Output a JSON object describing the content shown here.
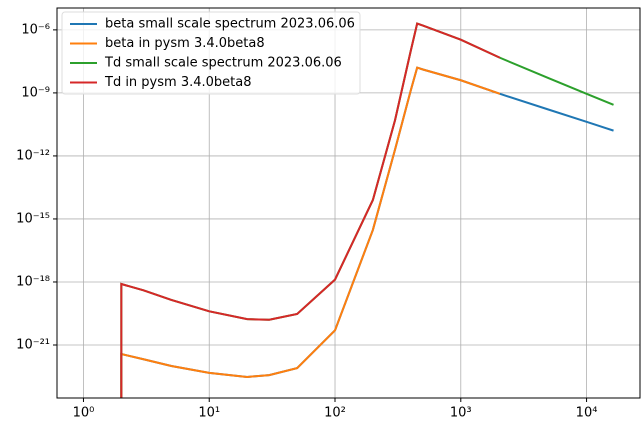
{
  "chart_data": {
    "type": "line",
    "log_x": true,
    "log_y": true,
    "grid": true,
    "legend": "upper left",
    "xlim": [
      0.616,
      26600
    ],
    "ylim": [
      3e-24,
      1.1e-05
    ],
    "xticks": [
      {
        "value": 1,
        "label": "10⁰"
      },
      {
        "value": 10,
        "label": "10¹"
      },
      {
        "value": 100,
        "label": "10²"
      },
      {
        "value": 1000,
        "label": "10³"
      },
      {
        "value": 10000,
        "label": "10⁴"
      }
    ],
    "yticks": [
      {
        "value": 1e-21,
        "label": "10⁻²¹"
      },
      {
        "value": 1e-18,
        "label": "10⁻¹⁸"
      },
      {
        "value": 1e-15,
        "label": "10⁻¹⁵"
      },
      {
        "value": 1e-12,
        "label": "10⁻¹²"
      },
      {
        "value": 1e-09,
        "label": "10⁻⁹"
      },
      {
        "value": 1e-06,
        "label": "10⁻⁶"
      }
    ],
    "series": [
      {
        "name": "beta small scale spectrum 2023.06.06",
        "color": "#1f77b4",
        "x": [
          2,
          2,
          3,
          5,
          10,
          20,
          30,
          50,
          100,
          200,
          300,
          400,
          450,
          500,
          1000,
          2048,
          5000,
          10000,
          16384
        ],
        "values": [
          1e-25,
          3.7e-22,
          2.1e-22,
          1e-22,
          4.7e-23,
          3e-23,
          3.7e-23,
          8e-23,
          5e-21,
          3e-16,
          2e-12,
          1.3e-09,
          1.6e-08,
          1.3e-08,
          4e-09,
          9e-10,
          1.6e-10,
          4.2e-11,
          1.6e-11
        ]
      },
      {
        "name": "beta in pysm 3.4.0beta8",
        "color": "#ff7f0e",
        "x": [
          2,
          2,
          3,
          5,
          10,
          20,
          30,
          50,
          100,
          200,
          300,
          400,
          450,
          500,
          1000,
          2048
        ],
        "values": [
          1e-25,
          3.7e-22,
          2.1e-22,
          1e-22,
          4.7e-23,
          3e-23,
          3.7e-23,
          8e-23,
          5e-21,
          3e-16,
          2e-12,
          1.3e-09,
          1.6e-08,
          1.3e-08,
          4e-09,
          9e-10
        ]
      },
      {
        "name": "Td small scale spectrum 2023.06.06",
        "color": "#2ca02c",
        "x": [
          2,
          2,
          3,
          5,
          10,
          20,
          30,
          50,
          100,
          200,
          300,
          400,
          450,
          500,
          1000,
          2048,
          5000,
          10000,
          16384
        ],
        "values": [
          1e-25,
          8e-19,
          4e-19,
          1.4e-19,
          4e-20,
          1.7e-20,
          1.6e-20,
          3e-20,
          1.3e-18,
          8e-15,
          5e-11,
          1e-07,
          2e-06,
          1.6e-06,
          3.4e-07,
          4.7e-08,
          5e-09,
          9e-10,
          2.7e-10
        ]
      },
      {
        "name": "Td in pysm 3.4.0beta8",
        "color": "#d62728",
        "x": [
          2,
          2,
          3,
          5,
          10,
          20,
          30,
          50,
          100,
          200,
          300,
          400,
          450,
          500,
          1000,
          2048
        ],
        "values": [
          1e-25,
          8e-19,
          4e-19,
          1.4e-19,
          4e-20,
          1.7e-20,
          1.6e-20,
          3e-20,
          1.3e-18,
          8e-15,
          5e-11,
          1e-07,
          2e-06,
          1.6e-06,
          3.4e-07,
          4.7e-08
        ]
      }
    ]
  }
}
